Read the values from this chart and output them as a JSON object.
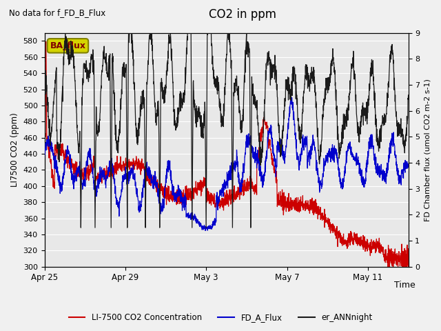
{
  "title": "CO2 in ppm",
  "top_left_text": "No data for f_FD_B_Flux",
  "annotation_text": "BA_flux",
  "ylabel_left": "LI7500 CO2 (ppm)",
  "ylabel_right": "FD Chamber flux (umol CO2 m-2 s-1)",
  "xlabel": "Time",
  "ylim_left": [
    300,
    590
  ],
  "ylim_right": [
    0.0,
    9.0
  ],
  "yticks_left": [
    300,
    320,
    340,
    360,
    380,
    400,
    420,
    440,
    460,
    480,
    500,
    520,
    540,
    560,
    580
  ],
  "yticks_right": [
    0.0,
    1.0,
    2.0,
    3.0,
    4.0,
    5.0,
    6.0,
    7.0,
    8.0,
    9.0
  ],
  "xtick_labels": [
    "Apr 25",
    "Apr 29",
    "May 3",
    "May 7",
    "May 11"
  ],
  "xtick_pos": [
    0,
    4,
    8,
    12,
    16
  ],
  "legend_labels": [
    "LI-7500 CO2 Concentration",
    "FD_A_Flux",
    "er_ANNnight"
  ],
  "line_red_color": "#cc0000",
  "line_blue_color": "#0000cc",
  "line_black_color": "#1a1a1a",
  "bg_outer": "#f0f0f0",
  "bg_inner": "#e8e8e8",
  "grid_color": "#ffffff",
  "annotation_bg": "#d4d400",
  "annotation_fg": "#800000",
  "annotation_edge": "#808000",
  "num_points": 2000,
  "x_max": 18.0
}
